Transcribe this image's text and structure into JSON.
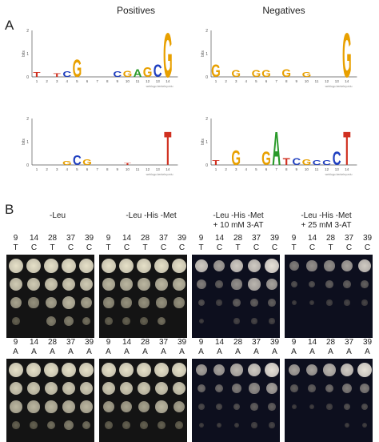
{
  "panel_a": {
    "letter": "A",
    "column_headers": [
      "Positives",
      "Negatives"
    ],
    "y_axis_label": "bits",
    "y_ticks": [
      "2",
      "1",
      "0"
    ],
    "x_ticks": [
      "1",
      "2",
      "3",
      "4",
      "5",
      "6",
      "7",
      "8",
      "9",
      "10",
      "11",
      "12",
      "13",
      "14"
    ],
    "credit": "weblogo.berkeley.edu",
    "logos": [
      {
        "name": "positives-top",
        "letters": [
          [
            "T",
            "#d03020"
          ],
          [
            "",
            "#000"
          ],
          [
            "T",
            "#d03020"
          ],
          [
            "C",
            "#2040c0"
          ],
          [
            "G",
            "#e8a000"
          ],
          [
            "",
            "#000"
          ],
          [
            "",
            "#000"
          ],
          [
            "",
            "#000"
          ],
          [
            "C",
            "#2040c0"
          ],
          [
            "G",
            "#e8a000"
          ],
          [
            "A",
            "#2a9a2a"
          ],
          [
            "G",
            "#e8a000"
          ],
          [
            "C",
            "#2040c0"
          ],
          [
            "G",
            "#e8a000"
          ]
        ],
        "heights": [
          0.22,
          0.05,
          0.15,
          0.25,
          0.8,
          0.05,
          0.08,
          0.04,
          0.25,
          0.28,
          0.35,
          0.45,
          0.55,
          2.0
        ]
      },
      {
        "name": "negatives-top",
        "letters": [
          [
            "G",
            "#e8a000"
          ],
          [
            "",
            "#000"
          ],
          [
            "G",
            "#e8a000"
          ],
          [
            "",
            "#000"
          ],
          [
            "G",
            "#e8a000"
          ],
          [
            "G",
            "#e8a000"
          ],
          [
            "",
            "#000"
          ],
          [
            "G",
            "#e8a000"
          ],
          [
            "",
            "#000"
          ],
          [
            "G",
            "#e8a000"
          ],
          [
            "",
            "#000"
          ],
          [
            "",
            "#000"
          ],
          [
            "",
            "#000"
          ],
          [
            "G",
            "#e8a000"
          ]
        ],
        "heights": [
          0.55,
          0.05,
          0.3,
          0.05,
          0.3,
          0.3,
          0.05,
          0.35,
          0.05,
          0.2,
          0.05,
          0.04,
          0.04,
          2.0
        ]
      },
      {
        "name": "positives-bottom",
        "letters": [
          [
            "",
            "#000"
          ],
          [
            "",
            "#000"
          ],
          [
            "",
            "#000"
          ],
          [
            "G",
            "#e8a000"
          ],
          [
            "C",
            "#2040c0"
          ],
          [
            "G",
            "#e8a000"
          ],
          [
            "",
            "#000"
          ],
          [
            "",
            "#000"
          ],
          [
            "",
            "#000"
          ],
          [
            "T",
            "#d03020"
          ],
          [
            "",
            "#000"
          ],
          [
            "",
            "#000"
          ],
          [
            "",
            "#000"
          ],
          [
            "T",
            "#d03020"
          ]
        ],
        "heights": [
          0.04,
          0.06,
          0.05,
          0.18,
          0.45,
          0.25,
          0.04,
          0.04,
          0.05,
          0.1,
          0.05,
          0.04,
          0.04,
          1.5
        ]
      },
      {
        "name": "negatives-bottom",
        "letters": [
          [
            "T",
            "#d03020"
          ],
          [
            "",
            "#000"
          ],
          [
            "G",
            "#e8a000"
          ],
          [
            "",
            "#000"
          ],
          [
            "",
            "#000"
          ],
          [
            "G",
            "#e8a000"
          ],
          [
            "A",
            "#2a9a2a"
          ],
          [
            "T",
            "#d03020"
          ],
          [
            "C",
            "#2040c0"
          ],
          [
            "G",
            "#e8a000"
          ],
          [
            "C",
            "#2040c0"
          ],
          [
            "C",
            "#2040c0"
          ],
          [
            "C",
            "#2040c0"
          ],
          [
            "T",
            "#d03020"
          ]
        ],
        "heights": [
          0.2,
          0.05,
          0.65,
          0.06,
          0.08,
          0.6,
          1.5,
          0.3,
          0.3,
          0.25,
          0.2,
          0.2,
          0.6,
          1.5
        ]
      }
    ]
  },
  "panel_b": {
    "letter": "B",
    "conditions": [
      {
        "line1": "-Leu",
        "line2": ""
      },
      {
        "line1": "-Leu -His -Met",
        "line2": ""
      },
      {
        "line1": "-Leu -His -Met",
        "line2": "+ 10 mM 3-AT"
      },
      {
        "line1": "-Leu -His -Met",
        "line2": "+ 25 mM 3-AT"
      }
    ],
    "positions": [
      "9",
      "14",
      "28",
      "37",
      "39"
    ],
    "rows": [
      {
        "bases": [
          "T",
          "C",
          "T",
          "C",
          "C"
        ]
      },
      {
        "bases": [
          "A",
          "A",
          "A",
          "A",
          "A"
        ]
      }
    ]
  }
}
